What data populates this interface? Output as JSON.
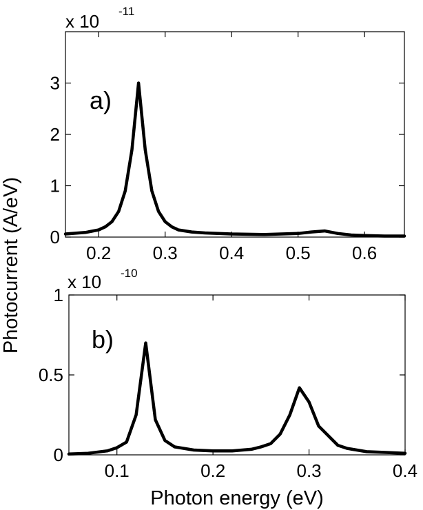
{
  "chart_data": [
    {
      "panel": "a",
      "type": "line",
      "panel_label": "a)",
      "exponent_prefix": "x 10",
      "exponent_power": "-11",
      "xlim": [
        0.15,
        0.66
      ],
      "ylim": [
        0,
        4
      ],
      "xticks": [
        0.2,
        0.3,
        0.4,
        0.5,
        0.6
      ],
      "xtick_labels": [
        "0.2",
        "0.3",
        "0.4",
        "0.5",
        "0.6"
      ],
      "yticks": [
        0,
        1,
        2,
        3
      ],
      "ytick_labels": [
        "0",
        "1",
        "2",
        "3"
      ],
      "x": [
        0.15,
        0.18,
        0.2,
        0.21,
        0.22,
        0.23,
        0.24,
        0.25,
        0.26,
        0.27,
        0.28,
        0.29,
        0.3,
        0.31,
        0.32,
        0.34,
        0.36,
        0.4,
        0.45,
        0.5,
        0.52,
        0.54,
        0.56,
        0.58,
        0.6,
        0.63,
        0.66
      ],
      "y": [
        0.06,
        0.09,
        0.14,
        0.2,
        0.3,
        0.5,
        0.9,
        1.7,
        3.0,
        1.7,
        0.9,
        0.5,
        0.3,
        0.2,
        0.14,
        0.1,
        0.08,
        0.06,
        0.05,
        0.07,
        0.1,
        0.12,
        0.07,
        0.04,
        0.03,
        0.02,
        0.02
      ],
      "grid": false
    },
    {
      "panel": "b",
      "type": "line",
      "panel_label": "b)",
      "exponent_prefix": "x 10",
      "exponent_power": "-10",
      "xlim": [
        0.05,
        0.4
      ],
      "ylim": [
        0,
        1
      ],
      "xticks": [
        0.1,
        0.2,
        0.3,
        0.4
      ],
      "xtick_labels": [
        "0.1",
        "0.2",
        "0.3",
        "0.4"
      ],
      "yticks": [
        0,
        0.5,
        1
      ],
      "ytick_labels": [
        "0",
        "0.5",
        "1"
      ],
      "x": [
        0.05,
        0.07,
        0.09,
        0.1,
        0.11,
        0.12,
        0.13,
        0.14,
        0.15,
        0.16,
        0.18,
        0.2,
        0.22,
        0.24,
        0.25,
        0.26,
        0.27,
        0.28,
        0.29,
        0.3,
        0.31,
        0.32,
        0.33,
        0.34,
        0.36,
        0.38,
        0.4
      ],
      "y": [
        0.005,
        0.01,
        0.025,
        0.045,
        0.08,
        0.25,
        0.7,
        0.22,
        0.09,
        0.05,
        0.03,
        0.025,
        0.025,
        0.035,
        0.05,
        0.07,
        0.13,
        0.25,
        0.42,
        0.33,
        0.18,
        0.12,
        0.06,
        0.04,
        0.02,
        0.015,
        0.01
      ],
      "grid": false
    }
  ],
  "labels": {
    "ylabel": "Photocurrent (A/eV)",
    "xlabel": "Photon energy (eV)"
  }
}
